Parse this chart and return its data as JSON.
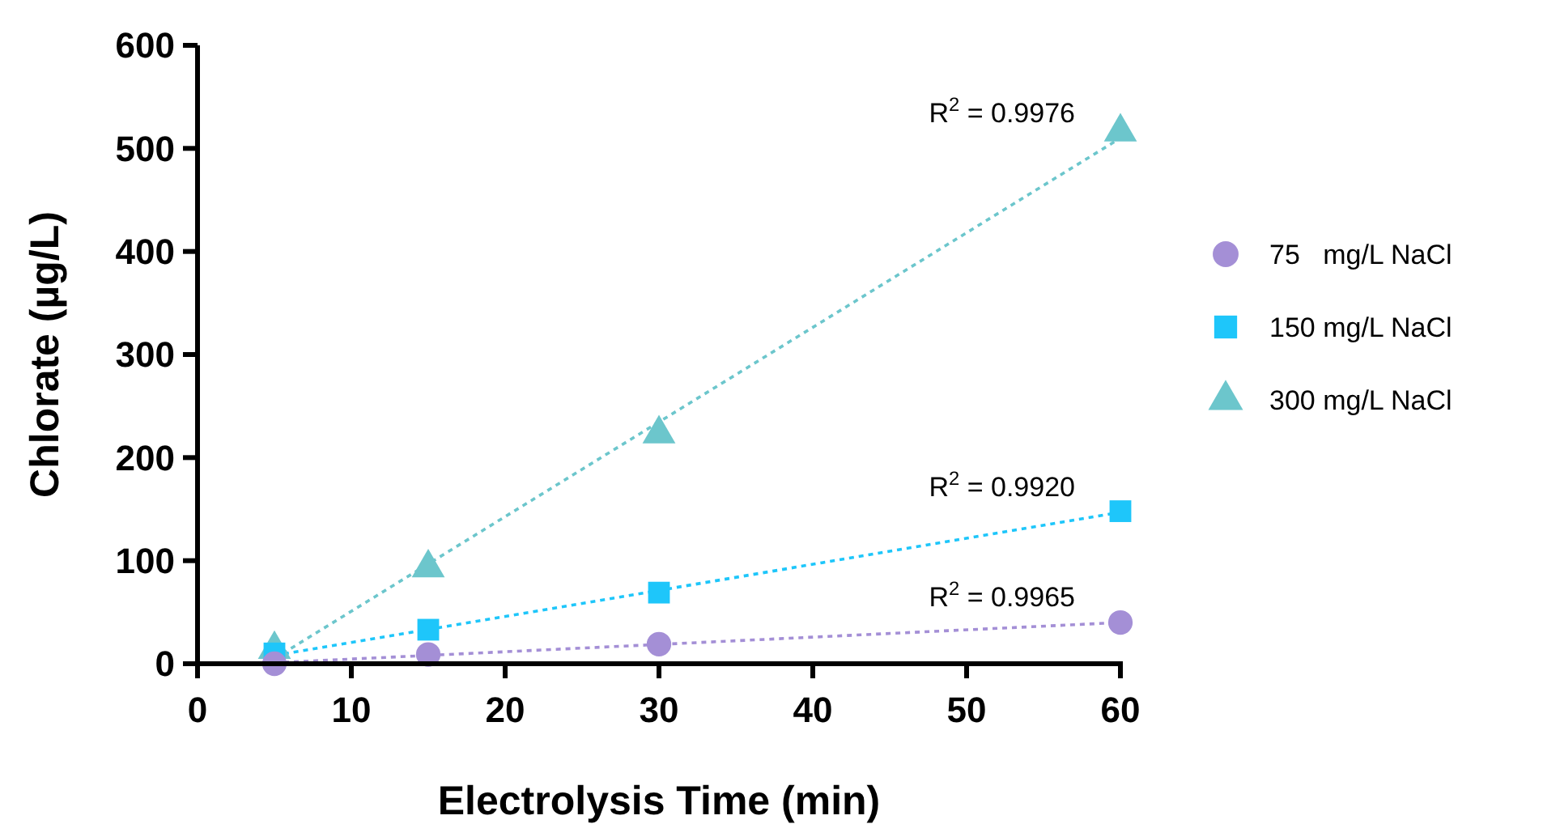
{
  "chart_data": {
    "type": "scatter",
    "xlabel": "Electrolysis Time (min)",
    "ylabel": "Chlorate (µg/L)",
    "xlim": [
      0,
      60
    ],
    "xticks": [
      0,
      10,
      20,
      30,
      40,
      50,
      60
    ],
    "ylim": [
      0,
      600
    ],
    "yticks": [
      0,
      100,
      200,
      300,
      400,
      500,
      600
    ],
    "grid": false,
    "legend": "right",
    "series": [
      {
        "name": "75   mg/L NaCl",
        "color": "#a48fd6",
        "marker": "circle",
        "x": [
          5,
          15,
          30,
          60
        ],
        "values": [
          0,
          9,
          19,
          40
        ]
      },
      {
        "name": "150 mg/L NaCl",
        "color": "#1ec6fa",
        "marker": "square",
        "x": [
          5,
          15,
          30,
          60
        ],
        "values": [
          10,
          33,
          69,
          148
        ]
      },
      {
        "name": "300 mg/L NaCl",
        "color": "#6cc6cc",
        "marker": "triangle",
        "x": [
          5,
          15,
          30,
          60
        ],
        "values": [
          14,
          93,
          223,
          516
        ]
      },
      {
        "type": "line",
        "color": "#a48fd6",
        "marker": "none",
        "line_style": "dotted",
        "x": [
          5,
          60
        ],
        "values": [
          1,
          40
        ]
      },
      {
        "type": "line",
        "color": "#1ec6fa",
        "marker": "none",
        "line_style": "dotted",
        "x": [
          5,
          60
        ],
        "values": [
          8,
          147
        ]
      },
      {
        "type": "line",
        "color": "#6cc6cc",
        "marker": "none",
        "line_style": "dotted",
        "x": [
          5,
          60
        ],
        "values": [
          5,
          510
        ]
      }
    ],
    "annotations": [
      "R$^{2}$ = 0.9965",
      "R$^{2}$ = 0.9920",
      "R$^{2}$ = 0.9976"
    ]
  }
}
